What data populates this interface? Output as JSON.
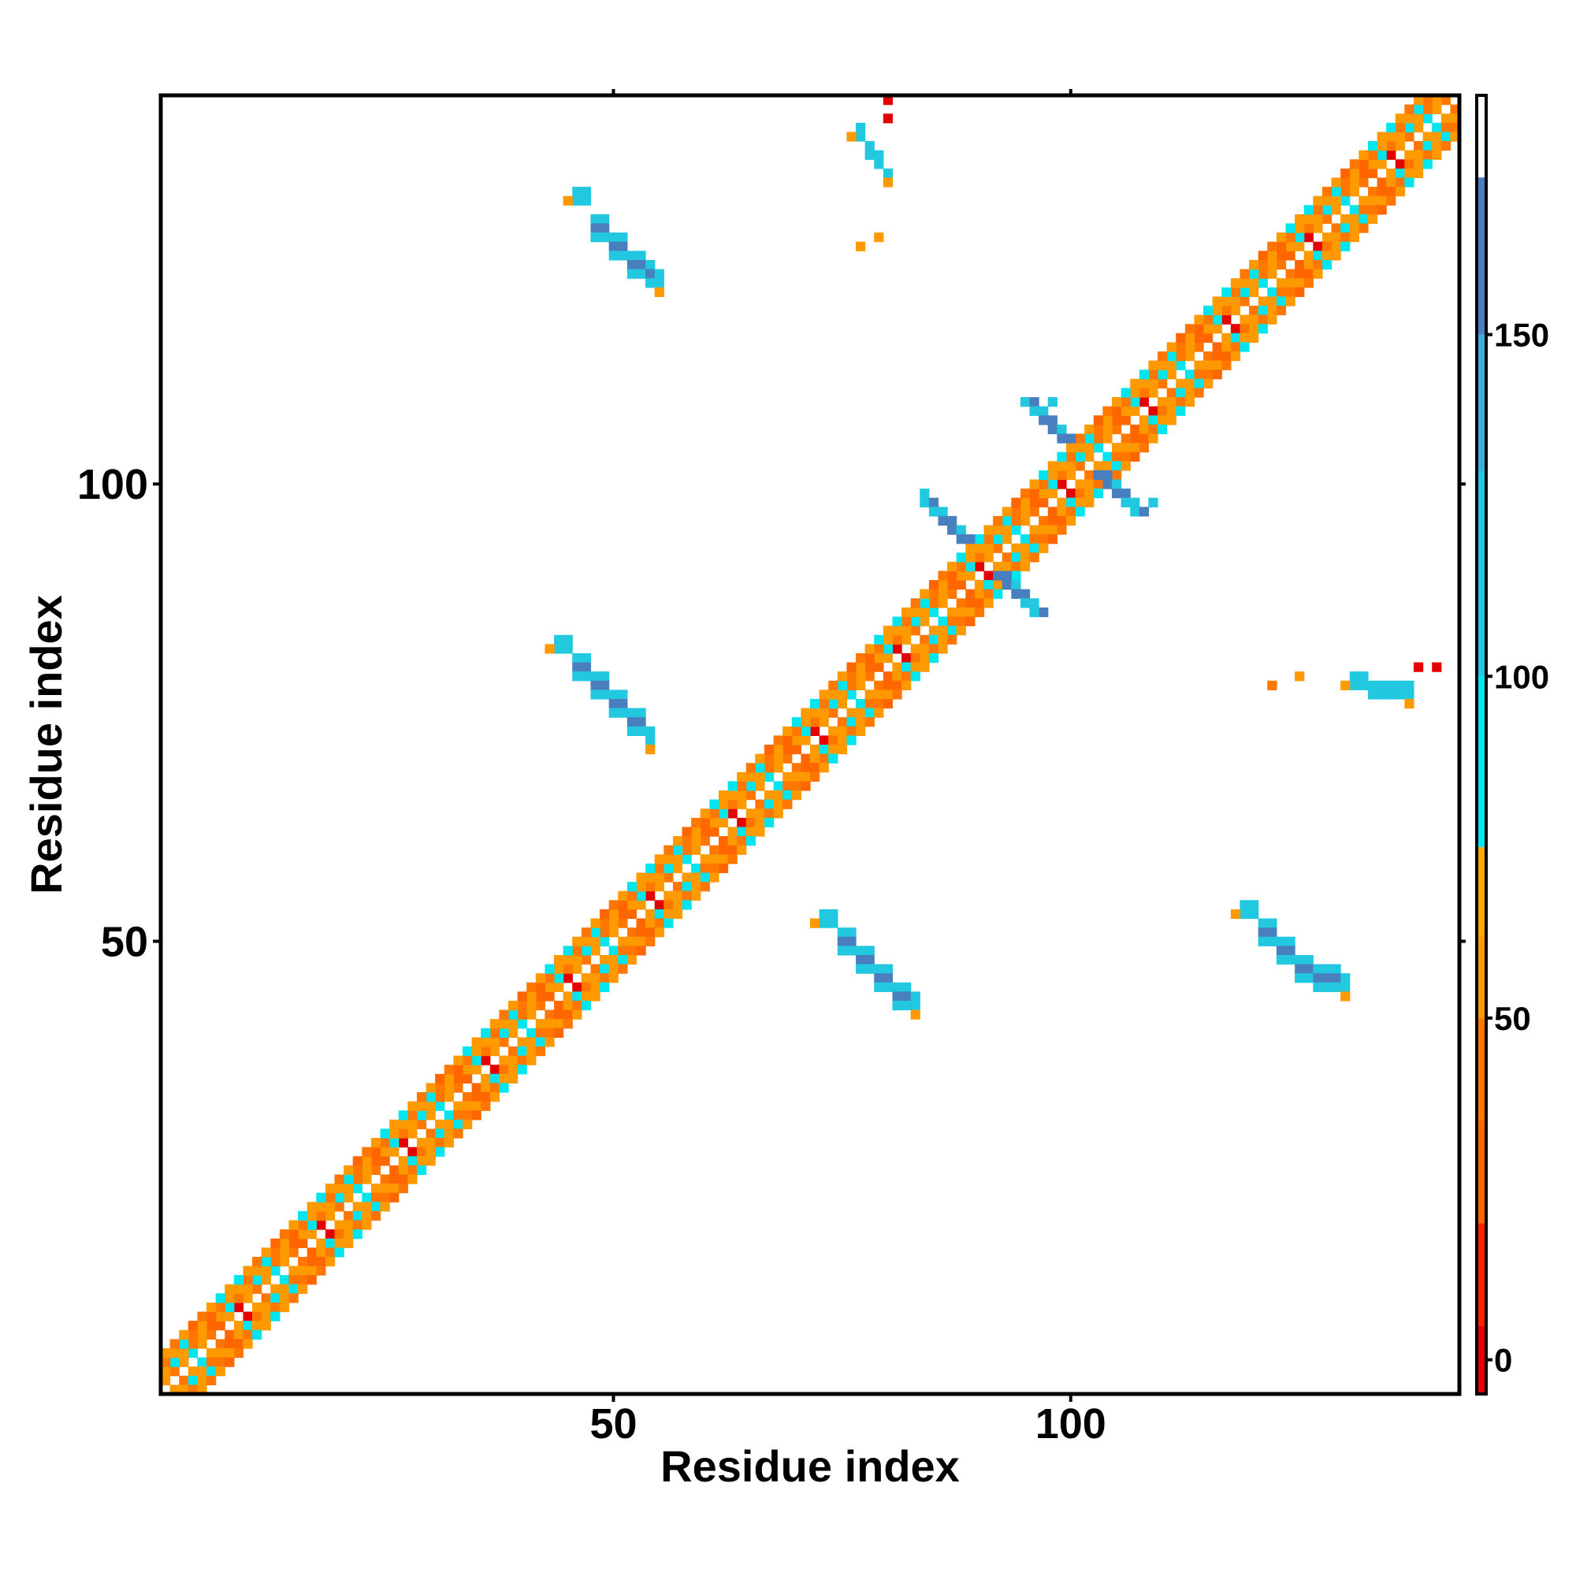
{
  "chart_data": {
    "type": "heatmap",
    "title": "",
    "xlabel": "Residue index",
    "ylabel": "Residue index",
    "xlim": [
      1,
      142
    ],
    "ylim": [
      1,
      142
    ],
    "x_ticks": [
      50,
      100
    ],
    "x_tick_labels": [
      "50",
      "100"
    ],
    "y_ticks": [
      50,
      100
    ],
    "y_tick_labels": [
      "50",
      "100"
    ],
    "grid": false,
    "legend": "colorbar-right",
    "colorbar": {
      "range": [
        -5,
        185
      ],
      "ticks": [
        0,
        50,
        100,
        150
      ],
      "tick_labels": [
        "0",
        "50",
        "100",
        "150"
      ],
      "stops": [
        {
          "from": -5,
          "to": 5,
          "color": "#e50000"
        },
        {
          "from": 5,
          "to": 20,
          "color": "#ff2200"
        },
        {
          "from": 20,
          "to": 35,
          "color": "#ff6600"
        },
        {
          "from": 35,
          "to": 50,
          "color": "#ff7700"
        },
        {
          "from": 50,
          "to": 62,
          "color": "#ff9900"
        },
        {
          "from": 62,
          "to": 75,
          "color": "#ffaa00"
        },
        {
          "from": 75,
          "to": 100,
          "color": "#00e5ee"
        },
        {
          "from": 100,
          "to": 130,
          "color": "#22c8e0"
        },
        {
          "from": 130,
          "to": 150,
          "color": "#3aaedc"
        },
        {
          "from": 150,
          "to": 173,
          "color": "#4a7fbf"
        },
        {
          "from": 173,
          "to": 185,
          "color": "#ffffff"
        }
      ]
    },
    "bands": [
      {
        "offset": 1,
        "from": 1,
        "to": 142,
        "values": [
          0,
          60,
          40,
          60,
          90,
          60,
          40,
          20,
          60
        ]
      },
      {
        "offset": 2,
        "from": 1,
        "to": 141,
        "values": [
          40,
          60,
          90,
          60,
          40,
          60,
          20,
          60,
          90
        ]
      },
      {
        "offset": 3,
        "from": 1,
        "to": 140,
        "values": [
          60,
          40,
          60,
          90,
          40,
          60,
          20,
          40,
          60
        ]
      },
      {
        "offset": 4,
        "from": 1,
        "to": 139,
        "values": [
          90,
          60,
          40,
          60,
          20,
          40,
          60,
          90,
          60
        ]
      }
    ],
    "clusters": [
      {
        "x": [
          46,
          48,
          50,
          52,
          54,
          55
        ],
        "y": [
          132,
          129,
          127,
          125,
          124,
          123
        ],
        "width": [
          2,
          3,
          3,
          3,
          3,
          2
        ],
        "value": 160,
        "edge_value": 110,
        "cap_value": 55
      },
      {
        "x": [
          44,
          46,
          48,
          50,
          52,
          54
        ],
        "y": [
          83,
          81,
          79,
          77,
          75,
          73
        ],
        "width": [
          2,
          3,
          3,
          3,
          3,
          2
        ],
        "value": 160,
        "edge_value": 110,
        "cap_value": 55
      },
      {
        "x": [
          73,
          75,
          77,
          79,
          81,
          83
        ],
        "y": [
          53,
          51,
          49,
          47,
          45,
          44
        ],
        "width": [
          2,
          3,
          3,
          3,
          3,
          2
        ],
        "value": 160,
        "edge_value": 110,
        "cap_value": 55
      },
      {
        "x": [
          119,
          121,
          123,
          125,
          127,
          130
        ],
        "y": [
          54,
          52,
          50,
          48,
          47,
          46
        ],
        "width": [
          2,
          3,
          3,
          3,
          3,
          2
        ],
        "value": 160,
        "edge_value": 110,
        "cap_value": 55
      },
      {
        "x": [
          90,
          101
        ],
        "y": [
          92,
          103
        ],
        "value": 160,
        "edge_value": 110,
        "arm": 6
      },
      {
        "x": [
          77,
          78,
          79,
          80
        ],
        "y": [
          139,
          137,
          136,
          134
        ],
        "width": [
          2,
          2,
          2,
          1
        ],
        "value": 120,
        "edge_value": 110,
        "cap_value": 55
      },
      {
        "x": [
          131,
          133,
          135,
          137
        ],
        "y": [
          79,
          78,
          78,
          78
        ],
        "width": [
          2,
          2,
          2,
          2
        ],
        "value": 120,
        "edge_value": 110,
        "cap_value": 55
      }
    ],
    "specks": [
      {
        "x": 80,
        "y": 142,
        "value": 0
      },
      {
        "x": 80,
        "y": 140,
        "value": 0
      },
      {
        "x": 79,
        "y": 127,
        "value": 60
      },
      {
        "x": 77,
        "y": 126,
        "value": 60
      },
      {
        "x": 138,
        "y": 80,
        "value": 0
      },
      {
        "x": 140,
        "y": 80,
        "value": 0
      },
      {
        "x": 125,
        "y": 79,
        "value": 60
      },
      {
        "x": 122,
        "y": 78,
        "value": 40
      },
      {
        "x": 84,
        "y": 99,
        "value": 110
      },
      {
        "x": 96,
        "y": 86,
        "value": 110
      },
      {
        "x": 109,
        "y": 98,
        "value": 110
      },
      {
        "x": 98,
        "y": 109,
        "value": 110
      }
    ]
  }
}
